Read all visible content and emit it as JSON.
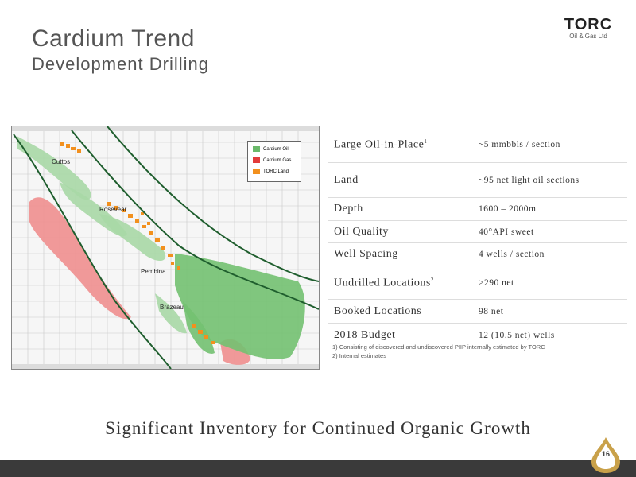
{
  "header": {
    "title": "Cardium Trend",
    "subtitle": "Development Drilling"
  },
  "logo": {
    "main": "TORC",
    "sub": "Oil & Gas Ltd"
  },
  "map": {
    "legend": [
      {
        "label": "Cardium Oil",
        "color": "#6ab96a"
      },
      {
        "label": "Cardium Gas",
        "color": "#e23b3b"
      },
      {
        "label": "TORC Land",
        "color": "#f2901e"
      }
    ],
    "places": [
      "Cuttos",
      "Rosevear",
      "Pembina",
      "Brazeau"
    ]
  },
  "table": {
    "rows": [
      {
        "label": "Large Oil-in-Place",
        "sup": "1",
        "value": "~5 mmbbls / section"
      },
      {
        "label": "Land",
        "sup": "",
        "value": "~95 net light oil sections"
      },
      {
        "label": "Depth",
        "sup": "",
        "value": "1600 – 2000m"
      },
      {
        "label": "Oil Quality",
        "sup": "",
        "value": "40°API sweet"
      },
      {
        "label": "Well Spacing",
        "sup": "",
        "value": "4 wells / section"
      },
      {
        "label": "Undrilled Locations",
        "sup": "2",
        "value": ">290 net"
      },
      {
        "label": "Booked Locations",
        "sup": "",
        "value": "98 net"
      },
      {
        "label": "2018 Budget",
        "sup": "",
        "value": "12 (10.5 net) wells"
      }
    ],
    "footnotes": [
      "1)    Consisting of discovered and undiscovered PIIP internally estimated by TORC",
      "2)    Internal estimates"
    ]
  },
  "tagline": "Significant Inventory for Continued Organic Growth",
  "page_number": "16"
}
